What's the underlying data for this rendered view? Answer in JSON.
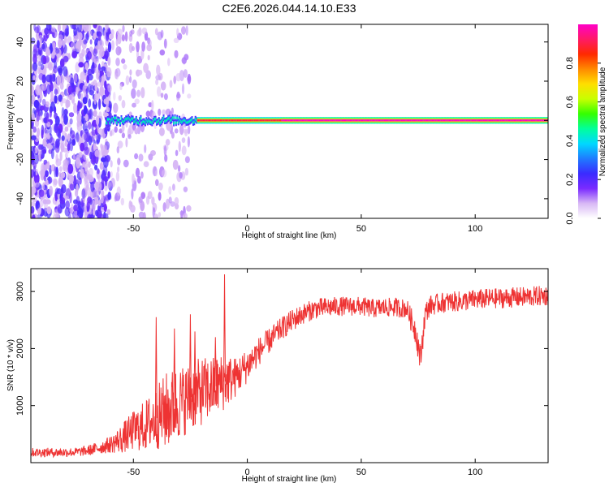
{
  "title": "C2E6.2026.044.14.10.E33",
  "chart_data": [
    {
      "type": "heatmap",
      "xlabel": "Height of straight line (km)",
      "ylabel": "Frequency (Hz)",
      "xlim": [
        -95,
        132
      ],
      "ylim": [
        -50,
        49
      ],
      "xticks": [
        -50,
        0,
        50,
        100
      ],
      "xtick_labels": [
        "-50",
        "0",
        "50",
        "100"
      ],
      "yticks": [
        -40,
        -20,
        0,
        20,
        40
      ],
      "ytick_labels": [
        "-40",
        "-20",
        "0",
        "20",
        "40"
      ],
      "colorbar": {
        "label": "Normalized spectral amplitude",
        "range": [
          0,
          1
        ],
        "ticks": [
          0.0,
          0.2,
          0.4,
          0.6,
          0.8
        ],
        "tick_labels": [
          "0.0",
          "0.2",
          "0.4",
          "0.6",
          "0.8"
        ],
        "colormap": [
          "#ffffff",
          "#d8b8f5",
          "#7a2bff",
          "#3a2bff",
          "#1f7bff",
          "#00d8ff",
          "#00ff9c",
          "#34ff00",
          "#c8ff00",
          "#ffde00",
          "#ff8a00",
          "#ff2a00",
          "#ff1a66",
          "#ff00c8"
        ]
      },
      "features": [
        {
          "region": "noise",
          "x_range": [
            -95,
            -60
          ],
          "freq_range": [
            -50,
            49
          ],
          "level": 0.15
        },
        {
          "region": "sparse_noise",
          "x_range": [
            -60,
            -25
          ],
          "freq_range": [
            -50,
            49
          ],
          "level": 0.05
        },
        {
          "region": "line",
          "x_range": [
            -62,
            -22
          ],
          "frequency": 0,
          "level": 0.45
        },
        {
          "region": "line",
          "x_range": [
            -22,
            15
          ],
          "frequency": 0,
          "level": 0.9
        },
        {
          "region": "line",
          "x_range": [
            15,
            132
          ],
          "frequency": 0,
          "level": 1.0
        }
      ]
    },
    {
      "type": "line",
      "xlabel": "Height of straight line (km)",
      "ylabel": "SNR (10 * v/v)",
      "xlim": [
        -95,
        132
      ],
      "ylim": [
        0,
        3400
      ],
      "xticks": [
        -50,
        0,
        50,
        100
      ],
      "xtick_labels": [
        "-50",
        "0",
        "50",
        "100"
      ],
      "yticks": [
        1000,
        2000,
        3000
      ],
      "ytick_labels": [
        "1000",
        "2000",
        "3000"
      ],
      "color": "#ee3333",
      "series": [
        {
          "x": [
            -95,
            -85,
            -75,
            -70,
            -65,
            -60,
            -55,
            -50,
            -45,
            -40,
            -35,
            -30,
            -25,
            -20,
            -15,
            -10,
            -5,
            0,
            5,
            10,
            15,
            20,
            25,
            30,
            35,
            40,
            45,
            50,
            55,
            60,
            65,
            70,
            74,
            76,
            78,
            80,
            85,
            90,
            95,
            100,
            105,
            110,
            115,
            120,
            125,
            132
          ],
          "values": [
            180,
            180,
            185,
            210,
            260,
            320,
            420,
            560,
            640,
            780,
            920,
            1050,
            1150,
            1250,
            1320,
            1420,
            1500,
            1700,
            1950,
            2150,
            2350,
            2500,
            2620,
            2700,
            2720,
            2740,
            2740,
            2740,
            2700,
            2720,
            2720,
            2700,
            2300,
            1800,
            2600,
            2750,
            2800,
            2820,
            2830,
            2860,
            2870,
            2880,
            2890,
            2900,
            2910,
            2930
          ],
          "spread": [
            80,
            80,
            80,
            90,
            110,
            150,
            260,
            350,
            450,
            550,
            700,
            650,
            600,
            600,
            550,
            500,
            350,
            300,
            250,
            220,
            200,
            200,
            180,
            180,
            180,
            170,
            170,
            170,
            170,
            170,
            170,
            170,
            250,
            250,
            200,
            180,
            180,
            180,
            180,
            180,
            180,
            180,
            180,
            180,
            180,
            180
          ]
        }
      ],
      "spikes": [
        {
          "x": -10,
          "value": 3300
        },
        {
          "x": -40,
          "value": 2550
        },
        {
          "x": -32,
          "value": 2350
        },
        {
          "x": -25,
          "value": 2600
        },
        {
          "x": -23,
          "value": 2300
        },
        {
          "x": -14,
          "value": 2200
        }
      ]
    }
  ]
}
